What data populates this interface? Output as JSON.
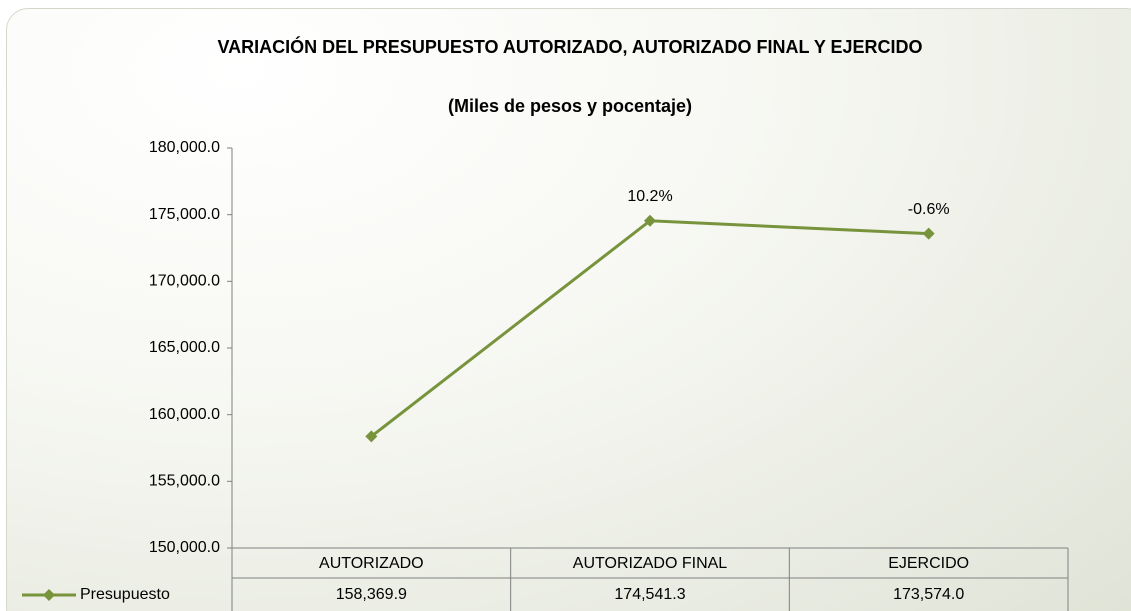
{
  "chart_data": {
    "type": "line",
    "title": "VARIACIÓN DEL PRESUPUESTO AUTORIZADO, AUTORIZADO FINAL Y EJERCIDO",
    "subtitle": "(Miles de pesos y pocentaje)",
    "categories": [
      "AUTORIZADO",
      "AUTORIZADO FINAL",
      "EJERCIDO"
    ],
    "series": [
      {
        "name": "Presupuesto",
        "color": "#77933c",
        "values": [
          158369.9,
          174541.3,
          173574.0
        ],
        "value_labels": [
          "158,369.9",
          "174,541.3",
          "173,574.0"
        ]
      }
    ],
    "annotations": [
      null,
      "10.2%",
      "-0.6%"
    ],
    "ylim": [
      150000,
      180000
    ],
    "yticks": [
      {
        "value": 150000,
        "label": "150,000.0"
      },
      {
        "value": 155000,
        "label": "155,000.0"
      },
      {
        "value": 160000,
        "label": "160,000.0"
      },
      {
        "value": 165000,
        "label": "165,000.0"
      },
      {
        "value": 170000,
        "label": "170,000.0"
      },
      {
        "value": 175000,
        "label": "175,000.0"
      },
      {
        "value": 180000,
        "label": "180,000.0"
      }
    ],
    "grid": false,
    "data_table": true
  }
}
